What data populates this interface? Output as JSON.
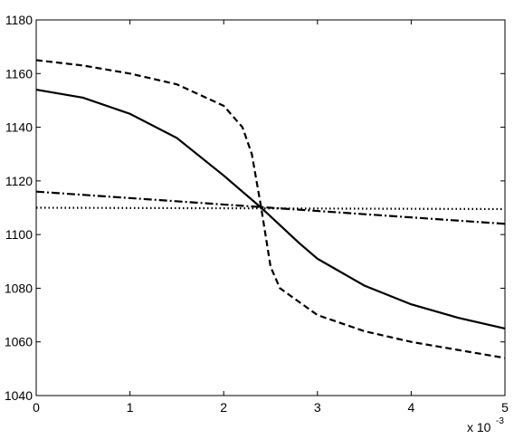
{
  "chart_data": {
    "type": "line",
    "xlim": [
      0,
      5
    ],
    "xticks": [
      0,
      1,
      2,
      3,
      4,
      5
    ],
    "ylim": [
      1040,
      1180
    ],
    "yticks": [
      1040,
      1060,
      1080,
      1100,
      1120,
      1140,
      1160,
      1180
    ],
    "x_scale_label": "x 10",
    "x_scale_exponent": "-3",
    "grid": false,
    "series": [
      {
        "color": "#000000",
        "style": "solid",
        "x": [
          0,
          0.5,
          1,
          1.5,
          2,
          2.4,
          2.8,
          3,
          3.5,
          4,
          4.5,
          5
        ],
        "values": [
          1154,
          1151,
          1145,
          1136,
          1122,
          1110,
          1097,
          1091,
          1081,
          1074,
          1069,
          1065
        ]
      },
      {
        "color": "#000000",
        "style": "dashed",
        "x": [
          0,
          0.5,
          1,
          1.5,
          2,
          2.2,
          2.3,
          2.4,
          2.5,
          2.6,
          3,
          3.5,
          4,
          4.5,
          5
        ],
        "values": [
          1165,
          1163,
          1160,
          1156,
          1148,
          1140,
          1130,
          1110,
          1088,
          1080,
          1070,
          1064,
          1060,
          1057,
          1054
        ]
      },
      {
        "color": "#000000",
        "style": "dashdot",
        "x": [
          0,
          2.5,
          5
        ],
        "values": [
          1116,
          1110,
          1104
        ]
      },
      {
        "color": "#000000",
        "style": "dotted",
        "x": [
          0,
          5
        ],
        "values": [
          1110,
          1109.5
        ]
      }
    ]
  }
}
